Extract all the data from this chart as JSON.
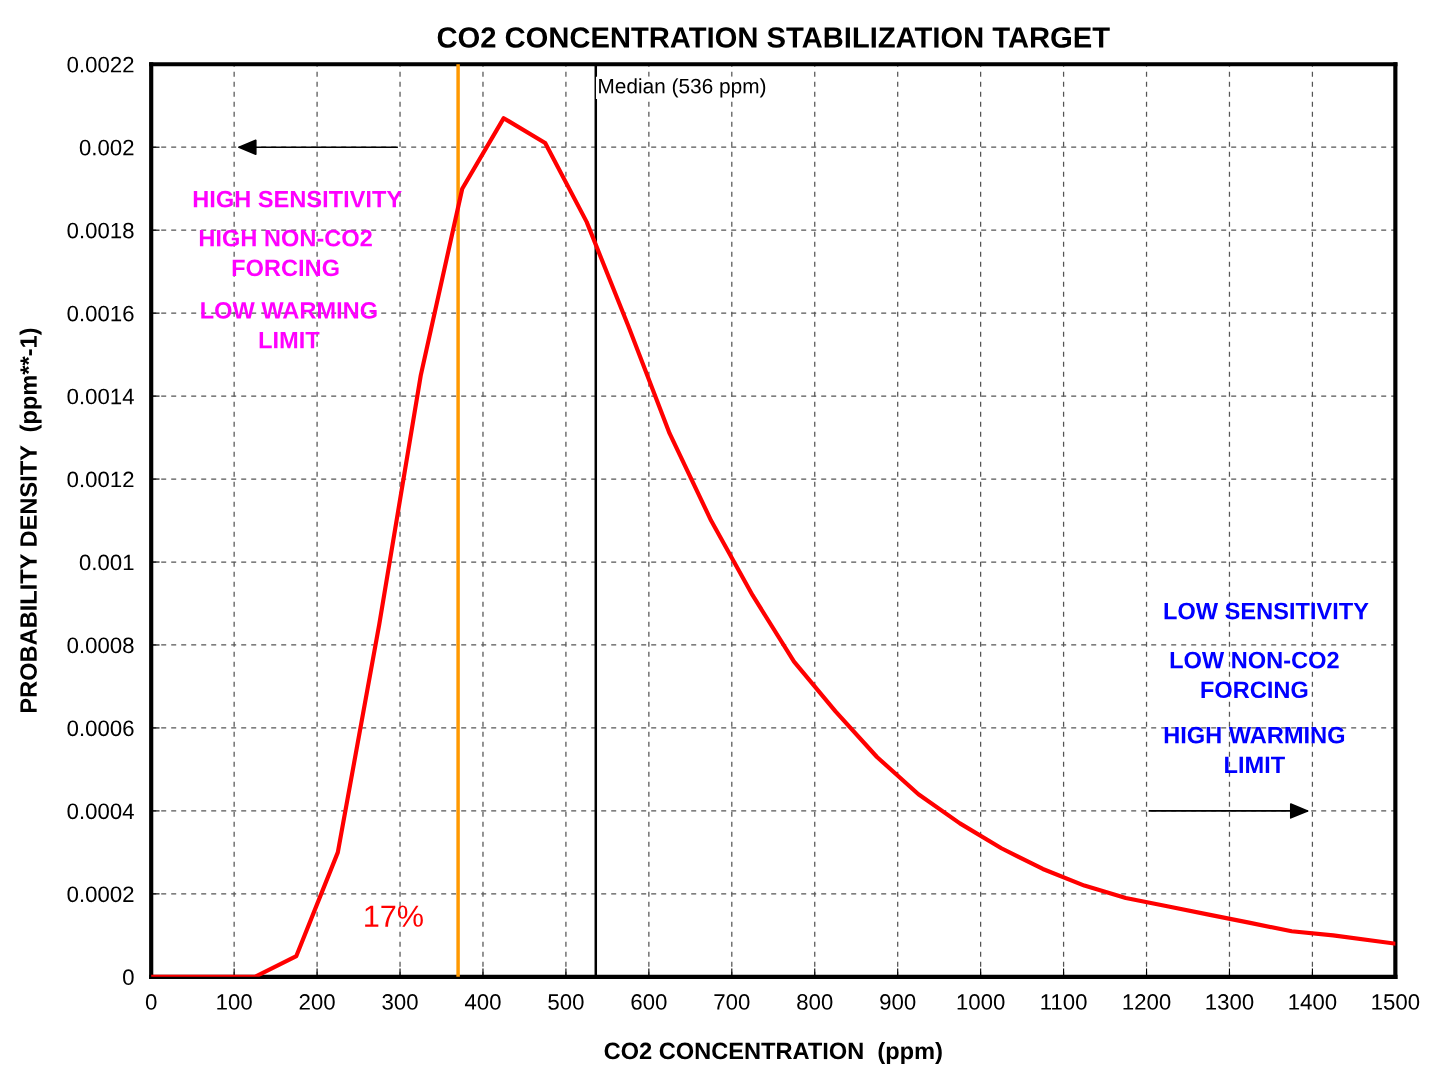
{
  "chart_data": {
    "type": "line",
    "title": "CO2 CONCENTRATION STABILIZATION TARGET",
    "xlabel": "CO2 CONCENTRATION  (ppm)",
    "ylabel": "PROBABILITY DENSITY  (ppm**-1)",
    "x": [
      0,
      25,
      75,
      125,
      175,
      225,
      275,
      325,
      375,
      425,
      475,
      525,
      575,
      625,
      675,
      725,
      775,
      825,
      875,
      925,
      975,
      1025,
      1075,
      1125,
      1175,
      1225,
      1275,
      1325,
      1375,
      1425,
      1500
    ],
    "series": [
      {
        "color": "#ff0000",
        "values": [
          0,
          0,
          0,
          0,
          5e-05,
          0.0003,
          0.00085,
          0.00145,
          0.0019,
          0.00207,
          0.00201,
          0.00182,
          0.00157,
          0.00131,
          0.0011,
          0.00092,
          0.00076,
          0.00064,
          0.00053,
          0.00044,
          0.00037,
          0.00031,
          0.00026,
          0.00022,
          0.00019,
          0.00017,
          0.00015,
          0.00013,
          0.00011,
          0.0001,
          8e-05
        ]
      }
    ],
    "xlim": [
      0,
      1500
    ],
    "xticks": [
      0,
      100,
      200,
      300,
      400,
      500,
      600,
      700,
      800,
      900,
      1000,
      1100,
      1200,
      1300,
      1400,
      1500
    ],
    "ylim": [
      0,
      0.0022
    ],
    "yticks": [
      0,
      0.0002,
      0.0004,
      0.0006,
      0.0008,
      0.001,
      0.0012,
      0.0014,
      0.0016,
      0.0018,
      0.002,
      0.0022
    ],
    "ref_lines": [
      {
        "axis": "x",
        "value": 370,
        "color": "#ff9900"
      },
      {
        "axis": "x",
        "value": 536,
        "color": "#000000",
        "label": "Median (536 ppm)"
      }
    ],
    "annotations": [
      "HIGH SENSITIVITY",
      "HIGH NON-CO2\nFORCING",
      "LOW WARMING\nLIMIT",
      "LOW SENSITIVITY",
      "LOW NON-CO2\nFORCING",
      "HIGH WARMING\nLIMIT",
      "17%"
    ],
    "grid": true,
    "line_style": "solid",
    "marker": "none"
  }
}
